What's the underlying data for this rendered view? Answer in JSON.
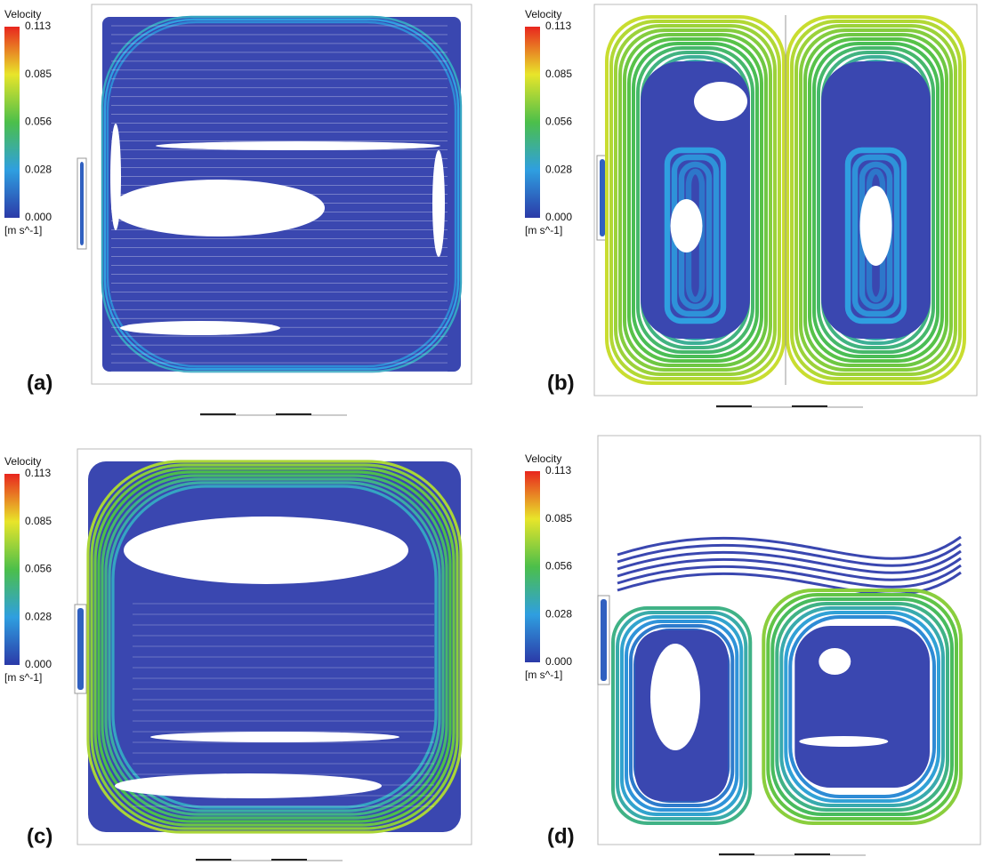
{
  "panels": [
    {
      "label": "(a)",
      "legend": {
        "title": "Velocity",
        "ticks": [
          "0.113",
          "0.085",
          "0.056",
          "0.028",
          "0.000"
        ],
        "unit": "[m s^-1]"
      }
    },
    {
      "label": "(b)",
      "legend": {
        "title": "Velocity",
        "ticks": [
          "0.113",
          "0.085",
          "0.056",
          "0.028",
          "0.000"
        ],
        "unit": "[m s^-1]"
      }
    },
    {
      "label": "(c)",
      "legend": {
        "title": "Velocity",
        "ticks": [
          "0.113",
          "0.085",
          "0.056",
          "0.028",
          "0.000"
        ],
        "unit": "[m s^-1]"
      }
    },
    {
      "label": "(d)",
      "legend": {
        "title": "Velocity",
        "ticks": [
          "0.113",
          "0.085",
          "0.056",
          "0.028",
          "0.000"
        ],
        "unit": "[m s^-1]"
      }
    }
  ]
}
